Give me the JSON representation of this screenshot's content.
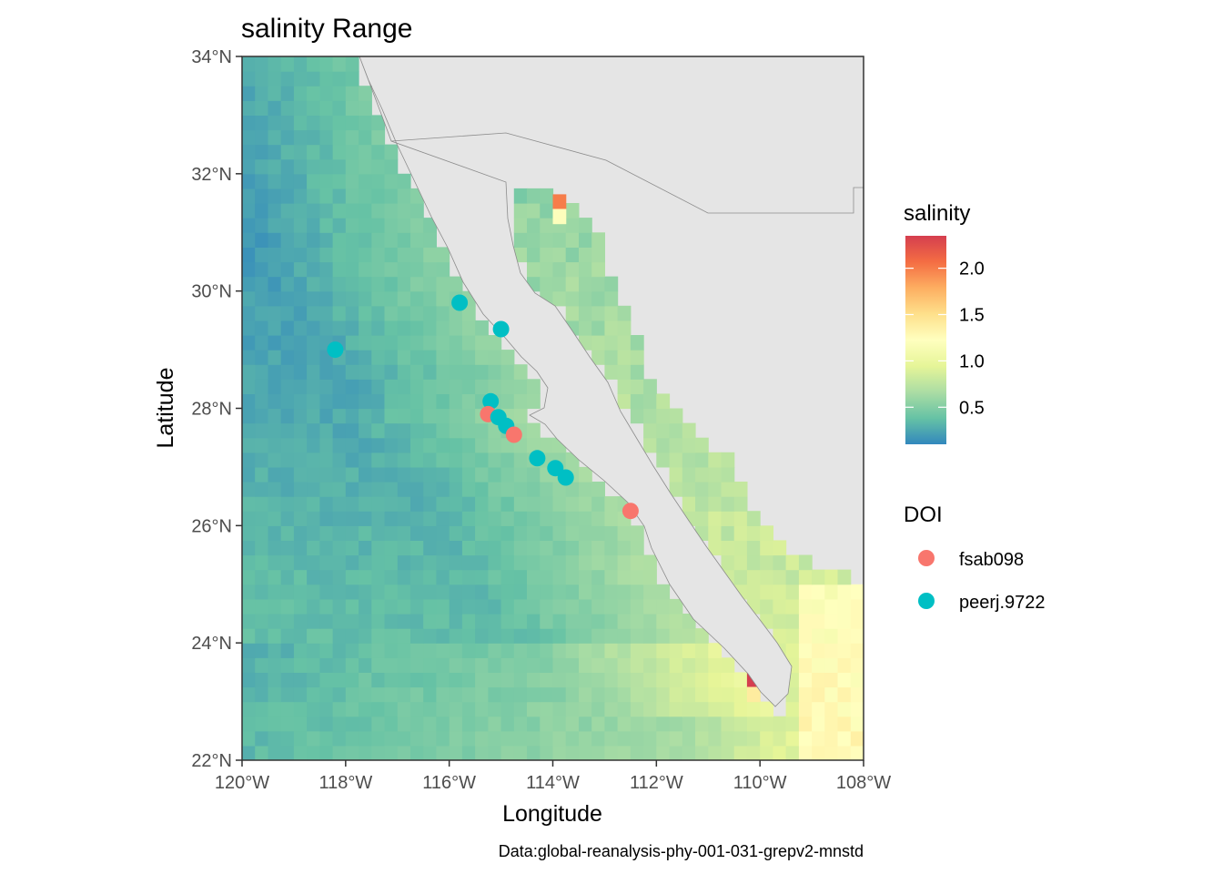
{
  "title": "salinity Range",
  "axes": {
    "xlabel": "Longitude",
    "ylabel": "Latitude",
    "xlim": [
      -120,
      -108
    ],
    "ylim": [
      22,
      34
    ],
    "x_ticks": [
      {
        "value": -120,
        "label": "120°W"
      },
      {
        "value": -118,
        "label": "118°W"
      },
      {
        "value": -116,
        "label": "116°W"
      },
      {
        "value": -114,
        "label": "114°W"
      },
      {
        "value": -112,
        "label": "112°W"
      },
      {
        "value": -110,
        "label": "110°W"
      },
      {
        "value": -108,
        "label": "108°W"
      }
    ],
    "y_ticks": [
      {
        "value": 22,
        "label": "22°N"
      },
      {
        "value": 24,
        "label": "24°N"
      },
      {
        "value": 26,
        "label": "26°N"
      },
      {
        "value": 28,
        "label": "28°N"
      },
      {
        "value": 30,
        "label": "30°N"
      },
      {
        "value": 32,
        "label": "32°N"
      },
      {
        "value": 34,
        "label": "34°N"
      }
    ]
  },
  "caption": "Data:global-reanalysis-phy-001-031-grepv2-mnstd",
  "legend_salinity": {
    "title": "salinity",
    "range": [
      0.1,
      2.35
    ],
    "ticks": [
      {
        "value": 2.0,
        "label": "2.0"
      },
      {
        "value": 1.5,
        "label": "1.5"
      },
      {
        "value": 1.0,
        "label": "1.0"
      },
      {
        "value": 0.5,
        "label": "0.5"
      }
    ]
  },
  "legend_doi": {
    "title": "DOI",
    "items": [
      {
        "label": "fsab098",
        "color": "#F8766D"
      },
      {
        "label": "peerj.9722",
        "color": "#00BFC4"
      }
    ]
  },
  "colors": {
    "land": "#e5e5e5",
    "land_border": "#8c8c8c",
    "scale": [
      "#3288BD",
      "#66C2A5",
      "#ABDDA4",
      "#E6F598",
      "#FFFFBF",
      "#FEE08B",
      "#FDAE61",
      "#F46D43",
      "#D53E4F"
    ]
  },
  "chart_data": {
    "type": "heatmap",
    "variable": "salinity",
    "points": [
      {
        "doi": "peerj.9722",
        "lon": -115.8,
        "lat": 29.8
      },
      {
        "doi": "peerj.9722",
        "lon": -115.0,
        "lat": 29.35
      },
      {
        "doi": "peerj.9722",
        "lon": -118.2,
        "lat": 29.0
      },
      {
        "doi": "peerj.9722",
        "lon": -115.2,
        "lat": 28.12
      },
      {
        "doi": "fsab098",
        "lon": -115.25,
        "lat": 27.9
      },
      {
        "doi": "peerj.9722",
        "lon": -115.05,
        "lat": 27.85
      },
      {
        "doi": "peerj.9722",
        "lon": -114.9,
        "lat": 27.7
      },
      {
        "doi": "fsab098",
        "lon": -114.75,
        "lat": 27.55
      },
      {
        "doi": "peerj.9722",
        "lon": -114.3,
        "lat": 27.15
      },
      {
        "doi": "peerj.9722",
        "lon": -113.95,
        "lat": 26.98
      },
      {
        "doi": "peerj.9722",
        "lon": -113.75,
        "lat": 26.82
      },
      {
        "doi": "fsab098",
        "lon": -112.5,
        "lat": 26.25
      }
    ],
    "hotspots": [
      {
        "lon": -114.0,
        "lat": 31.4,
        "value": 2.0
      },
      {
        "lon": -114.0,
        "lat": 31.15,
        "value": 1.2
      },
      {
        "lon": -110.25,
        "lat": 23.25,
        "value": 2.35
      },
      {
        "lon": -110.25,
        "lat": 23.0,
        "value": 1.4
      }
    ]
  }
}
